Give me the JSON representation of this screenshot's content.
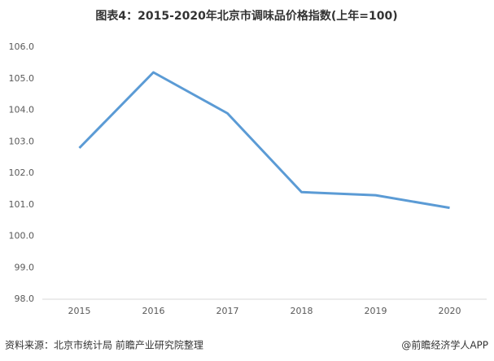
{
  "chart_data": {
    "type": "line",
    "title": "图表4：2015-2020年北京市调味品价格指数(上年=100)",
    "categories": [
      "2015",
      "2016",
      "2017",
      "2018",
      "2019",
      "2020"
    ],
    "series": [
      {
        "name": "北京市调味品价格指数",
        "color": "#5b9bd5",
        "values": [
          102.8,
          105.2,
          103.9,
          101.4,
          101.3,
          100.9
        ]
      }
    ],
    "ylim": [
      98,
      106
    ],
    "yticks": [
      {
        "value": 98,
        "label": "98.0"
      },
      {
        "value": 99,
        "label": "99.0"
      },
      {
        "value": 100,
        "label": "100.0"
      },
      {
        "value": 101,
        "label": "101.0"
      },
      {
        "value": 102,
        "label": "102.0"
      },
      {
        "value": 103,
        "label": "103.0"
      },
      {
        "value": 104,
        "label": "104.0"
      },
      {
        "value": 105,
        "label": "105.0"
      },
      {
        "value": 106,
        "label": "106.0"
      }
    ],
    "source": "资料来源：北京市统计局 前瞻产业研究院整理",
    "credit": "@前瞻经济学人APP"
  }
}
